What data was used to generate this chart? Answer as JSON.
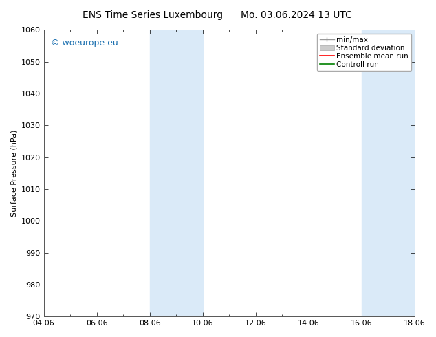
{
  "title_left": "ENS Time Series Luxembourg",
  "title_right": "Mo. 03.06.2024 13 UTC",
  "ylabel": "Surface Pressure (hPa)",
  "ylim": [
    970,
    1060
  ],
  "yticks": [
    970,
    980,
    990,
    1000,
    1010,
    1020,
    1030,
    1040,
    1050,
    1060
  ],
  "xtick_labels": [
    "04.06",
    "06.06",
    "08.06",
    "10.06",
    "12.06",
    "14.06",
    "16.06",
    "18.06"
  ],
  "shade_color": "#daeaf8",
  "watermark_text": "© woeurope.eu",
  "watermark_color": "#1a6faf",
  "bg_color": "#ffffff",
  "font_size_title": 10,
  "font_size_axis": 8,
  "font_size_legend": 7.5,
  "font_size_watermark": 9
}
